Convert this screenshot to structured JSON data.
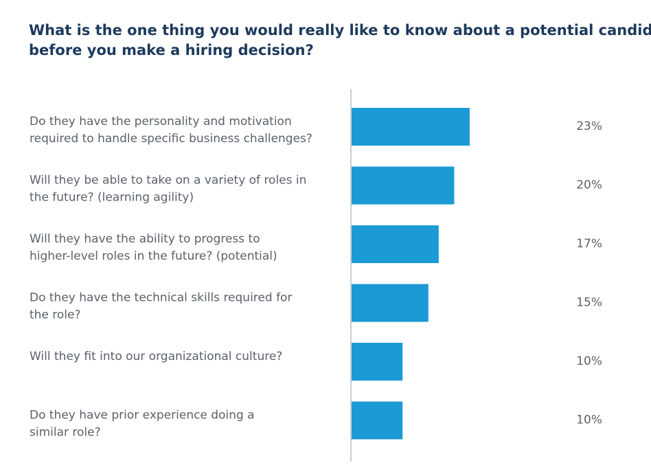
{
  "title_lines": [
    "What is the one thing you would really like to know about a potential candidate",
    "before you make a hiring decision?"
  ],
  "chart_data": {
    "type": "bar",
    "orientation": "horizontal",
    "title": "What is the one thing you would really like to know about a potential candidate before you make a hiring decision?",
    "categories": [
      [
        "Do they have the personality and motivation",
        "required to handle specific business challenges?"
      ],
      [
        "Will they be able to take on a variety of roles in",
        "the future? (learning agility)"
      ],
      [
        "Will they have the ability to progress to",
        "higher-level roles in the future? (potential)"
      ],
      [
        "Do they have the technical skills required for",
        "the role?"
      ],
      [
        "Will they fit into our organizational culture?"
      ],
      [
        "Do they have prior experience doing a",
        "similar role?"
      ]
    ],
    "values": [
      23,
      20,
      17,
      15,
      10,
      10
    ],
    "value_labels": [
      "23%",
      "20%",
      "17%",
      "15%",
      "10%",
      "10%"
    ],
    "xlim": [
      0,
      40
    ],
    "grid": false,
    "bar_color": "#1b9ad6",
    "axis_color": "#c9ced3"
  }
}
